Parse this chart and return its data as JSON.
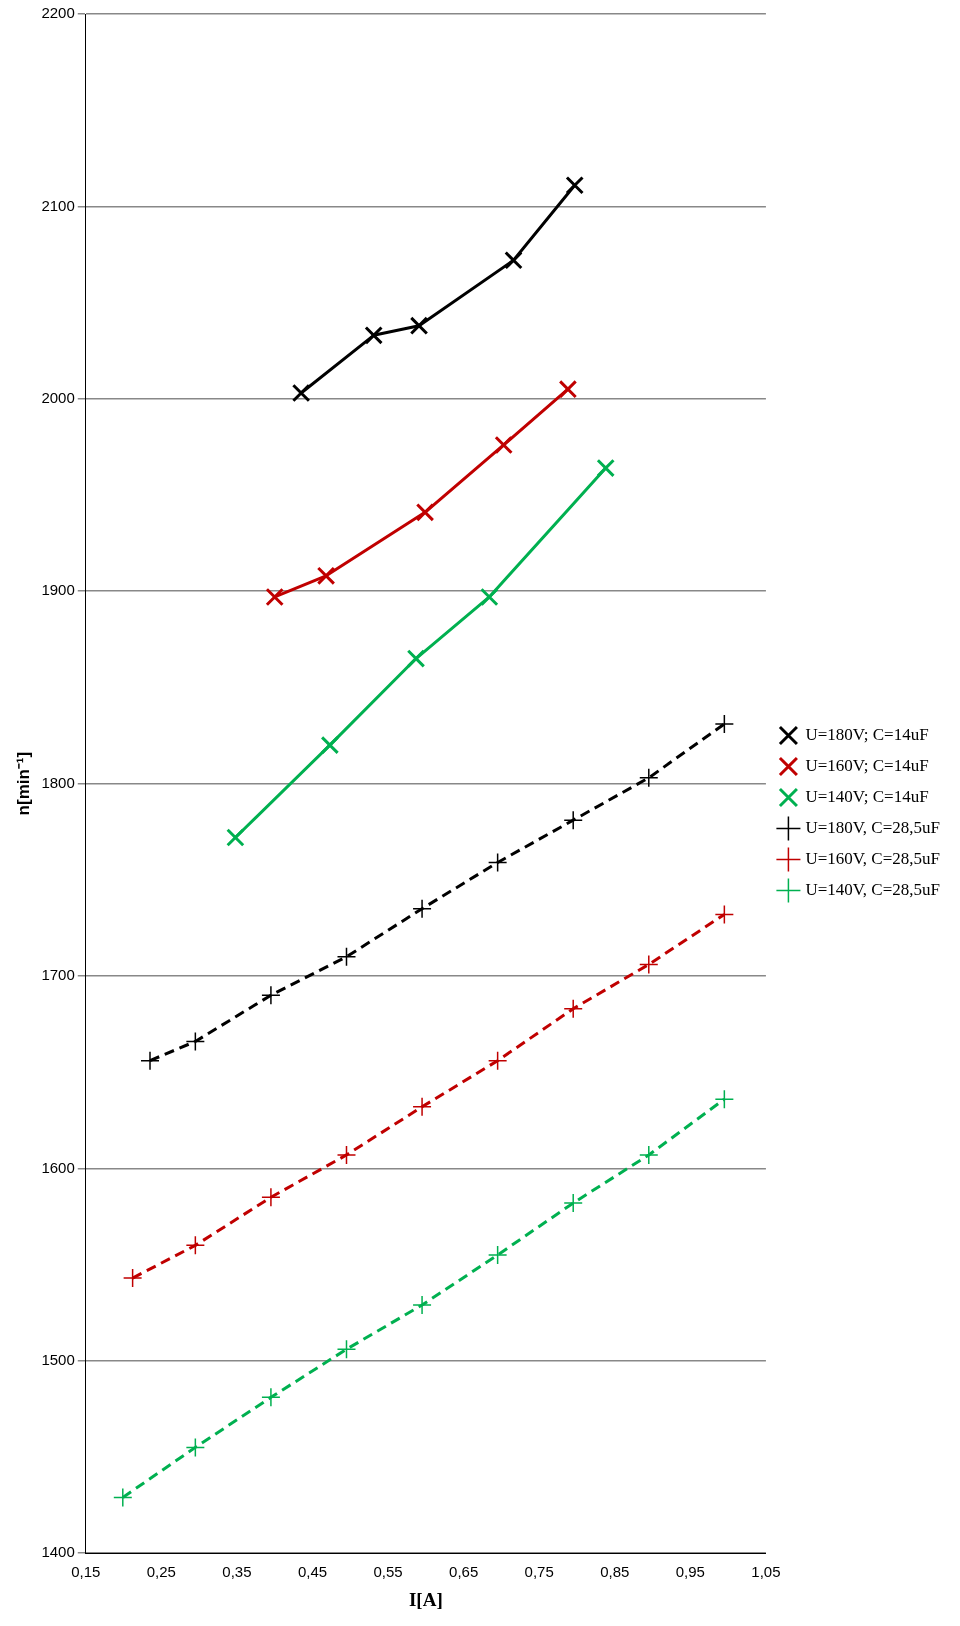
{
  "chart_data": {
    "type": "line",
    "xlabel": "I[A]",
    "ylabel": "n[min⁻¹]",
    "xlim": [
      0.15,
      1.05
    ],
    "xticks": [
      {
        "value": 0.15,
        "label": "0,15"
      },
      {
        "value": 0.25,
        "label": "0,25"
      },
      {
        "value": 0.35,
        "label": "0,35"
      },
      {
        "value": 0.45,
        "label": "0,45"
      },
      {
        "value": 0.55,
        "label": "0,55"
      },
      {
        "value": 0.65,
        "label": "0,65"
      },
      {
        "value": 0.75,
        "label": "0,75"
      },
      {
        "value": 0.85,
        "label": "0,85"
      },
      {
        "value": 0.95,
        "label": "0,95"
      },
      {
        "value": 1.05,
        "label": "1,05"
      }
    ],
    "ylim": [
      1400,
      2200
    ],
    "yticks": [
      1400,
      1500,
      1600,
      1700,
      1800,
      1900,
      2000,
      2100,
      2200
    ],
    "grid": "y",
    "legend": "right",
    "series": [
      {
        "name": "U=180V; C=14uF",
        "color": "#000000",
        "marker": "x",
        "line_style": "solid",
        "x": [
          0.435,
          0.531,
          0.591,
          0.716,
          0.797
        ],
        "values": [
          2003,
          2033,
          2038,
          2072,
          2111
        ]
      },
      {
        "name": "U=160V; C=14uF",
        "color": "#c00000",
        "marker": "x",
        "line_style": "solid",
        "x": [
          0.4,
          0.468,
          0.599,
          0.703,
          0.788
        ],
        "values": [
          1897,
          1908,
          1941,
          1976,
          2005
        ]
      },
      {
        "name": "U=140V; C=14uF",
        "color": "#00b050",
        "marker": "x",
        "line_style": "solid",
        "x": [
          0.348,
          0.473,
          0.587,
          0.684,
          0.838
        ],
        "values": [
          1772,
          1820,
          1865,
          1897,
          1964
        ]
      },
      {
        "name": "U=180V, C=28,5uF",
        "color": "#000000",
        "marker": "cross",
        "line_style": "dashed",
        "x": [
          0.235,
          0.295,
          0.395,
          0.495,
          0.595,
          0.695,
          0.795,
          0.895,
          0.995
        ],
        "values": [
          1656,
          1666,
          1690,
          1710,
          1735,
          1759,
          1781,
          1803,
          1831
        ]
      },
      {
        "name": "U=160V, C=28,5uF",
        "color": "#c00000",
        "marker": "cross",
        "line_style": "dashed",
        "x": [
          0.212,
          0.295,
          0.395,
          0.495,
          0.595,
          0.695,
          0.795,
          0.895,
          0.995
        ],
        "values": [
          1543,
          1560,
          1585,
          1607,
          1632,
          1656,
          1683,
          1706,
          1732
        ]
      },
      {
        "name": "U=140V, C=28,5uF",
        "color": "#00b050",
        "marker": "cross",
        "line_style": "dashed",
        "x": [
          0.199,
          0.295,
          0.395,
          0.495,
          0.595,
          0.695,
          0.795,
          0.895,
          0.995
        ],
        "values": [
          1429,
          1455,
          1481,
          1506,
          1529,
          1555,
          1582,
          1607,
          1636
        ]
      }
    ]
  }
}
